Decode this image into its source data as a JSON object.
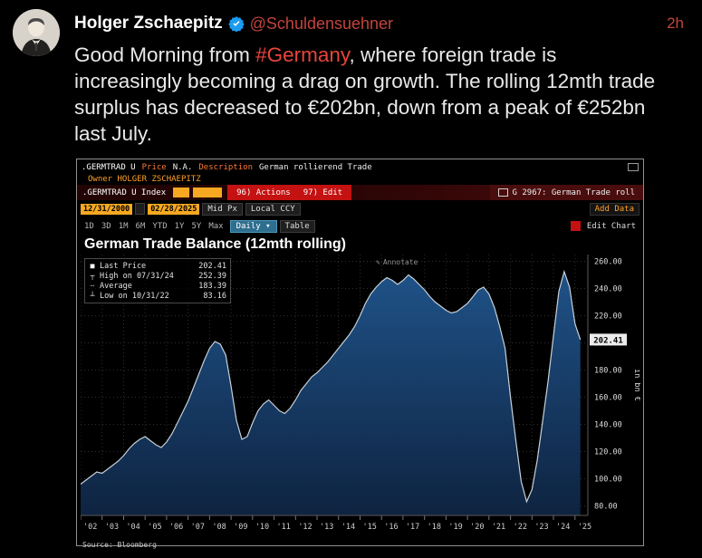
{
  "colors": {
    "background": "#000000",
    "accent_amber": "#f6a821",
    "bloomberg_red": "#c41111",
    "area_fill_top": "#1f5288",
    "area_fill_bottom": "#0e2340",
    "line": "#c7d0d8",
    "hashtag_red": "#e8453c",
    "handle_red": "#c2443c",
    "verified_blue": "#1d9bf0"
  },
  "tweet": {
    "author": "Holger Zschaepitz",
    "handle": "@Schuldensuehner",
    "timestamp": "2h",
    "lines": [
      {
        "pre": "Good Morning from ",
        "hashtag": "#Germany",
        "post": ", where foreign trade is"
      },
      {
        "text": "increasingly becoming a drag on growth. The rolling 12mth trade"
      },
      {
        "text": "surplus has decreased to €202bn, down from a peak of €252bn"
      },
      {
        "text": "last July."
      }
    ]
  },
  "terminal": {
    "header": {
      "ticker": ".GERMTRAD U",
      "price_label": "Price",
      "price_value": "N.A.",
      "desc_label": "Description",
      "desc_value": "German rollierend Trade",
      "owner": "Owner HOLGER ZSCHAEPITZ"
    },
    "security_bar": {
      "ticker": ".GERMTRAD U Index",
      "actions": "96) Actions",
      "edit": "97) Edit",
      "page_tag": "G 2967: German Trade roll"
    },
    "toolbar": {
      "date_from": "12/31/2000",
      "date_to": "02/28/2025",
      "px_type": "Mid Px",
      "currency": "Local CCY",
      "add_data": "Add Data"
    },
    "range_bar": {
      "ranges": [
        "1D",
        "3D",
        "1M",
        "6M",
        "YTD",
        "1Y",
        "5Y",
        "Max"
      ],
      "frequency": "Daily ▾",
      "table": "Table",
      "edit_chart": "Edit Chart"
    },
    "annotate": "Annotate",
    "source": "Source: Bloomberg"
  },
  "chart_data": {
    "type": "area",
    "title": "German Trade Balance (12mth rolling)",
    "ylabel": "in bn €",
    "x_start": 2002.0,
    "x_step": 0.25,
    "x_axis": {
      "min": 2002.0,
      "max": 2025.6,
      "tick_labels": [
        "'02",
        "'03",
        "'04",
        "'05",
        "'06",
        "'07",
        "'08",
        "'09",
        "'10",
        "'11",
        "'12",
        "'13",
        "'14",
        "'15",
        "'16",
        "'17",
        "'18",
        "'19",
        "'20",
        "'21",
        "'22",
        "'23",
        "'24",
        "'25"
      ]
    },
    "y_axis": {
      "min": 73,
      "max": 265,
      "ticks": [
        80,
        100,
        120,
        140,
        160,
        180,
        200,
        220,
        240,
        260
      ]
    },
    "values": [
      96,
      99,
      102,
      105,
      104,
      107,
      110,
      113,
      117,
      122,
      126,
      129,
      131,
      128,
      125,
      123,
      127,
      133,
      141,
      149,
      157,
      167,
      177,
      187,
      196,
      201,
      199,
      191,
      168,
      143,
      129,
      131,
      141,
      150,
      155,
      158,
      154,
      150,
      148,
      152,
      158,
      165,
      170,
      175,
      178,
      182,
      186,
      191,
      196,
      201,
      206,
      212,
      220,
      229,
      236,
      241,
      245,
      248,
      246,
      243,
      246,
      250,
      247,
      243,
      239,
      234,
      230,
      227,
      224,
      222,
      223,
      226,
      229,
      234,
      239,
      241,
      236,
      226,
      212,
      196,
      160,
      128,
      98,
      83.16,
      92,
      114,
      143,
      172,
      205,
      238,
      252.39,
      241,
      214,
      202.41
    ],
    "last_price": 202.41,
    "legend": [
      {
        "label": "Last Price",
        "value": "202.41"
      },
      {
        "label": "High on 07/31/24",
        "value": "252.39"
      },
      {
        "label": "Average",
        "value": "183.39"
      },
      {
        "label": "Low on 10/31/22",
        "value": "83.16"
      }
    ]
  }
}
